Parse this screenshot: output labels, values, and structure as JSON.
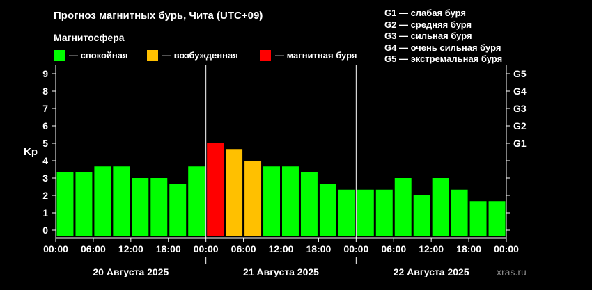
{
  "title": "Прогноз магнитных бурь, Чита (UTC+09)",
  "subtitle": "Магнитосфера",
  "legend": [
    {
      "label": "— спокойная",
      "color": "#00ff00"
    },
    {
      "label": "— возбужденная",
      "color": "#ffc000"
    },
    {
      "label": "— магнитная буря",
      "color": "#ff0000"
    }
  ],
  "storm_scale": [
    "G1 — слабая буря",
    "G2 — средняя буря",
    "G3 — сильная буря",
    "G4 — очень сильная буря",
    "G5 — экстремальная буря"
  ],
  "watermark": "xras.ru",
  "chart_data": {
    "type": "bar",
    "ylabel": "Kp",
    "ylim": [
      0,
      9
    ],
    "y_ticks": [
      "0",
      "1",
      "2",
      "3",
      "4",
      "5",
      "6",
      "7",
      "8",
      "9"
    ],
    "right_ticks": [
      {
        "kp": 5,
        "label": "G1"
      },
      {
        "kp": 6,
        "label": "G2"
      },
      {
        "kp": 7,
        "label": "G3"
      },
      {
        "kp": 8,
        "label": "G4"
      },
      {
        "kp": 9,
        "label": "G5"
      }
    ],
    "x_ticks": [
      "00:00",
      "06:00",
      "12:00",
      "18:00",
      "00:00",
      "06:00",
      "12:00",
      "18:00",
      "00:00",
      "06:00",
      "12:00",
      "18:00",
      "00:00"
    ],
    "days": [
      "20 Августа 2025",
      "21 Августа 2025",
      "22 Августа 2025"
    ],
    "values": [
      3.33,
      3.33,
      3.67,
      3.67,
      3.0,
      3.0,
      2.67,
      3.67,
      5.0,
      4.67,
      4.0,
      3.67,
      3.67,
      3.33,
      2.67,
      2.33,
      2.33,
      2.33,
      3.0,
      2.0,
      3.0,
      2.33,
      1.67,
      1.67
    ],
    "colors": {
      "quiet": "#00ff00",
      "active": "#ffc000",
      "storm": "#ff0000"
    }
  }
}
